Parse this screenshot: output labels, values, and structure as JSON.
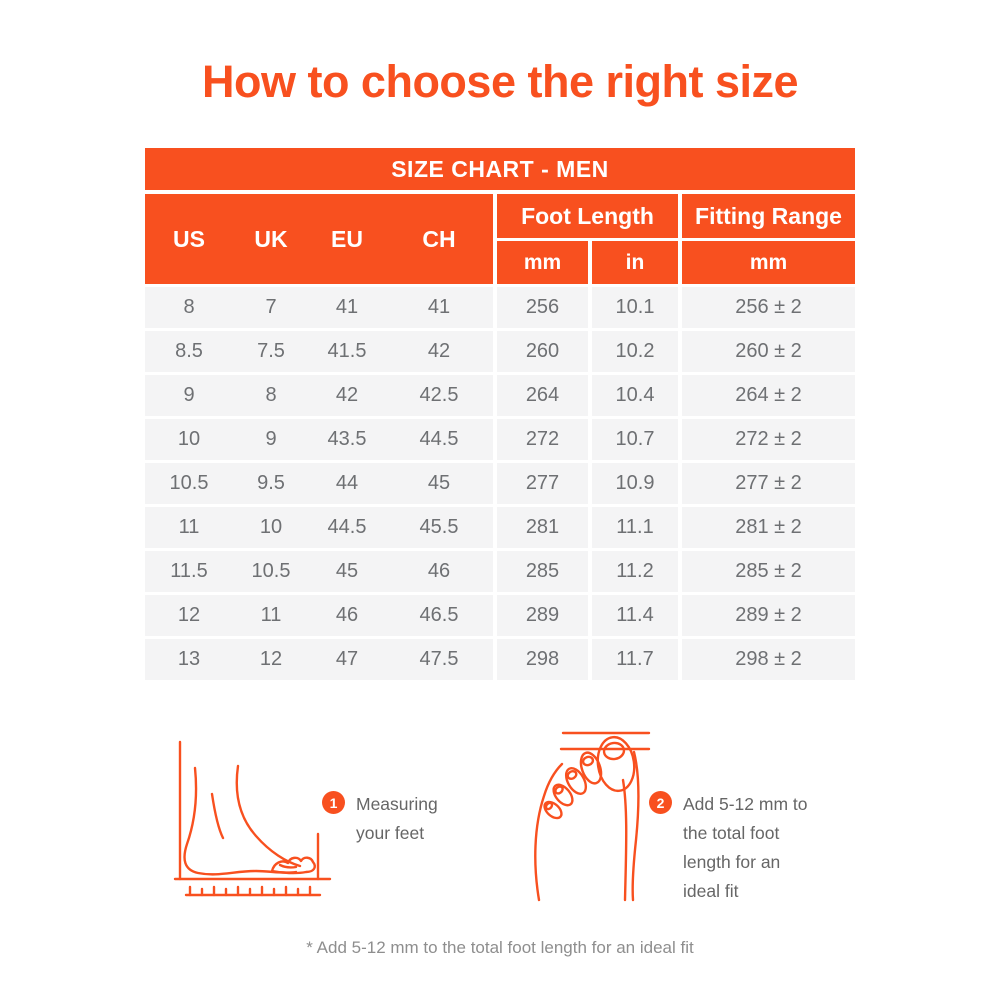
{
  "page": {
    "title": "How to choose the right size",
    "footnote": "* Add 5-12 mm to the total foot length for an ideal fit"
  },
  "colors": {
    "accent": "#F8501F",
    "row_bg": "#F4F4F5",
    "cell_text": "#6E7073",
    "note_text": "#666666",
    "footnote_text": "#8E8E8E"
  },
  "table": {
    "banner": "SIZE CHART - MEN",
    "size_columns": [
      "US",
      "UK",
      "EU",
      "CH"
    ],
    "group_headers": [
      {
        "label": "Foot Length",
        "sub": [
          "mm",
          "in"
        ]
      },
      {
        "label": "Fitting Range",
        "sub": [
          "mm"
        ]
      }
    ],
    "rows": [
      [
        "8",
        "7",
        "41",
        "41",
        "256",
        "10.1",
        "256 ± 2"
      ],
      [
        "8.5",
        "7.5",
        "41.5",
        "42",
        "260",
        "10.2",
        "260 ± 2"
      ],
      [
        "9",
        "8",
        "42",
        "42.5",
        "264",
        "10.4",
        "264 ± 2"
      ],
      [
        "10",
        "9",
        "43.5",
        "44.5",
        "272",
        "10.7",
        "272 ± 2"
      ],
      [
        "10.5",
        "9.5",
        "44",
        "45",
        "277",
        "10.9",
        "277 ± 2"
      ],
      [
        "11",
        "10",
        "44.5",
        "45.5",
        "281",
        "11.1",
        "281 ± 2"
      ],
      [
        "11.5",
        "10.5",
        "45",
        "46",
        "285",
        "11.2",
        "285 ± 2"
      ],
      [
        "12",
        "11",
        "46",
        "46.5",
        "289",
        "11.4",
        "289 ± 2"
      ],
      [
        "13",
        "12",
        "47",
        "47.5",
        "298",
        "11.7",
        "298 ± 2"
      ]
    ]
  },
  "instructions": [
    {
      "num": "1",
      "text": "Measuring your feet"
    },
    {
      "num": "2",
      "text": "Add 5-12 mm to the total foot length for an ideal fit"
    }
  ]
}
